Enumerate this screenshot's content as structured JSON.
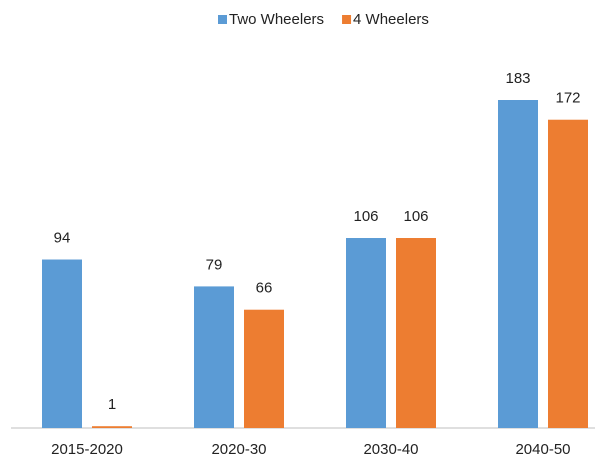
{
  "chart_data": {
    "type": "bar",
    "categories": [
      "2015-2020",
      "2020-30",
      "2030-40",
      "2040-50"
    ],
    "series": [
      {
        "name": "Two Wheelers",
        "color": "#5b9bd5",
        "values": [
          94,
          79,
          106,
          183
        ]
      },
      {
        "name": "4 Wheelers",
        "color": "#ed7d31",
        "values": [
          1,
          66,
          106,
          172
        ]
      }
    ],
    "legend": "top"
  }
}
